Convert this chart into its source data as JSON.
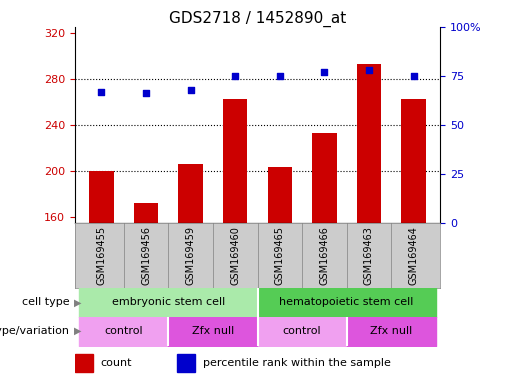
{
  "title": "GDS2718 / 1452890_at",
  "samples": [
    "GSM169455",
    "GSM169456",
    "GSM169459",
    "GSM169460",
    "GSM169465",
    "GSM169466",
    "GSM169463",
    "GSM169464"
  ],
  "counts": [
    200,
    172,
    206,
    262,
    203,
    233,
    293,
    262
  ],
  "percentiles": [
    67,
    66,
    68,
    75,
    75,
    77,
    78,
    75
  ],
  "ylim_left": [
    155,
    325
  ],
  "ylim_right": [
    0,
    100
  ],
  "yticks_left": [
    160,
    200,
    240,
    280,
    320
  ],
  "yticks_right": [
    0,
    25,
    50,
    75,
    100
  ],
  "bar_color": "#cc0000",
  "dot_color": "#0000cc",
  "cell_type_groups": [
    {
      "label": "embryonic stem cell",
      "start": 0,
      "end": 3,
      "color": "#aaeaaa"
    },
    {
      "label": "hematopoietic stem cell",
      "start": 4,
      "end": 7,
      "color": "#55cc55"
    }
  ],
  "genotype_groups": [
    {
      "label": "control",
      "start": 0,
      "end": 1,
      "color": "#f0a0f0"
    },
    {
      "label": "Zfx null",
      "start": 2,
      "end": 3,
      "color": "#dd55dd"
    },
    {
      "label": "control",
      "start": 4,
      "end": 5,
      "color": "#f0a0f0"
    },
    {
      "label": "Zfx null",
      "start": 6,
      "end": 7,
      "color": "#dd55dd"
    }
  ],
  "xtick_bg": "#cccccc",
  "legend_count_color": "#cc0000",
  "legend_dot_color": "#0000cc",
  "tick_fontsize": 8,
  "title_fontsize": 11,
  "annot_fontsize": 8,
  "sample_fontsize": 7
}
